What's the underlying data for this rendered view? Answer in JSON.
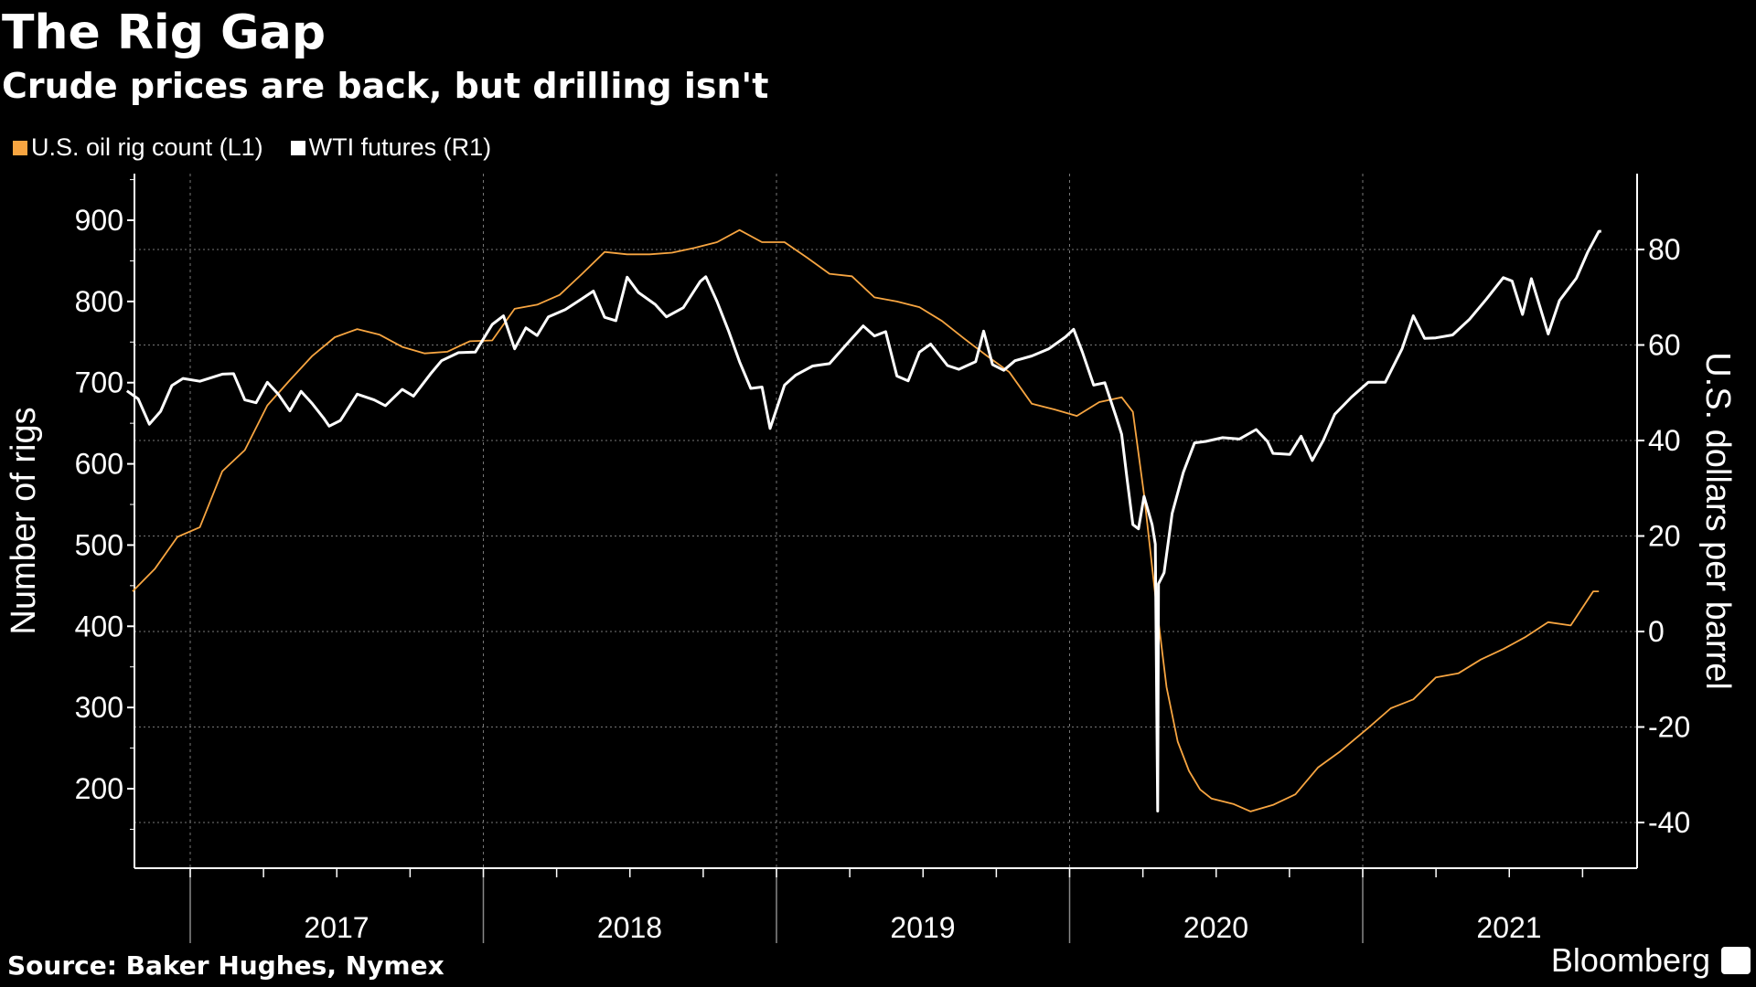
{
  "title": "The Rig Gap",
  "subtitle": "Crude prices are back, but drilling isn't",
  "source": "Source: Baker Hughes, Nymex",
  "brand": "Bloomberg",
  "chart_data": {
    "type": "line",
    "title": "The Rig Gap",
    "subtitle": "Crude prices are back, but drilling isn't",
    "legend_placement": "top-left",
    "grid": true,
    "x_ticks": [
      "2017",
      "2018",
      "2019",
      "2020",
      "2021"
    ],
    "xlim": [
      "2016-10-15",
      "2021-12-01"
    ],
    "y_left": {
      "label": "Number of rigs",
      "lim": [
        100,
        950
      ],
      "ticks": [
        200,
        300,
        400,
        500,
        600,
        700,
        800,
        900
      ]
    },
    "y_right": {
      "label": "U.S. dollars per barrel",
      "lim": [
        -50,
        95
      ],
      "ticks": [
        -40,
        -20,
        0,
        20,
        40,
        60,
        80
      ]
    },
    "series": [
      {
        "name": "U.S. oil rig count (L1)",
        "axis": "left",
        "color": "#f7a541",
        "points": [
          [
            "2016-10-21",
            443
          ],
          [
            "2016-11-18",
            471
          ],
          [
            "2016-12-16",
            510
          ],
          [
            "2017-01-13",
            522
          ],
          [
            "2017-02-10",
            591
          ],
          [
            "2017-03-10",
            617
          ],
          [
            "2017-04-07",
            672
          ],
          [
            "2017-05-05",
            703
          ],
          [
            "2017-06-02",
            733
          ],
          [
            "2017-06-30",
            756
          ],
          [
            "2017-07-28",
            766
          ],
          [
            "2017-08-25",
            759
          ],
          [
            "2017-09-22",
            744
          ],
          [
            "2017-10-20",
            736
          ],
          [
            "2017-11-17",
            738
          ],
          [
            "2017-12-15",
            751
          ],
          [
            "2018-01-12",
            752
          ],
          [
            "2018-02-09",
            791
          ],
          [
            "2018-03-09",
            796
          ],
          [
            "2018-04-06",
            808
          ],
          [
            "2018-05-04",
            834
          ],
          [
            "2018-06-01",
            861
          ],
          [
            "2018-06-29",
            858
          ],
          [
            "2018-07-27",
            858
          ],
          [
            "2018-08-24",
            860
          ],
          [
            "2018-09-21",
            866
          ],
          [
            "2018-10-19",
            873
          ],
          [
            "2018-11-16",
            888
          ],
          [
            "2018-12-14",
            873
          ],
          [
            "2019-01-11",
            873
          ],
          [
            "2019-02-08",
            854
          ],
          [
            "2019-03-08",
            834
          ],
          [
            "2019-04-05",
            831
          ],
          [
            "2019-05-03",
            805
          ],
          [
            "2019-05-31",
            800
          ],
          [
            "2019-06-28",
            793
          ],
          [
            "2019-07-26",
            776
          ],
          [
            "2019-08-23",
            754
          ],
          [
            "2019-09-20",
            733
          ],
          [
            "2019-10-18",
            713
          ],
          [
            "2019-11-15",
            674
          ],
          [
            "2019-12-13",
            667
          ],
          [
            "2020-01-10",
            659
          ],
          [
            "2020-02-07",
            676
          ],
          [
            "2020-03-06",
            682
          ],
          [
            "2020-03-20",
            664
          ],
          [
            "2020-04-03",
            562
          ],
          [
            "2020-04-17",
            438
          ],
          [
            "2020-05-01",
            325
          ],
          [
            "2020-05-15",
            258
          ],
          [
            "2020-05-29",
            222
          ],
          [
            "2020-06-12",
            199
          ],
          [
            "2020-06-26",
            188
          ],
          [
            "2020-07-24",
            181
          ],
          [
            "2020-08-14",
            172
          ],
          [
            "2020-09-11",
            180
          ],
          [
            "2020-10-09",
            193
          ],
          [
            "2020-11-06",
            226
          ],
          [
            "2020-12-04",
            246
          ],
          [
            "2021-01-08",
            275
          ],
          [
            "2021-02-05",
            299
          ],
          [
            "2021-03-05",
            310
          ],
          [
            "2021-04-02",
            337
          ],
          [
            "2021-04-30",
            342
          ],
          [
            "2021-05-28",
            359
          ],
          [
            "2021-06-25",
            372
          ],
          [
            "2021-07-23",
            387
          ],
          [
            "2021-08-20",
            405
          ],
          [
            "2021-09-17",
            401
          ],
          [
            "2021-10-15",
            443
          ],
          [
            "2021-10-22",
            443
          ]
        ]
      },
      {
        "name": "WTI futures (R1)",
        "axis": "right",
        "color": "#ffffff",
        "points": [
          [
            "2016-10-14",
            50.4
          ],
          [
            "2016-10-28",
            48.7
          ],
          [
            "2016-11-11",
            43.4
          ],
          [
            "2016-11-25",
            46.1
          ],
          [
            "2016-12-09",
            51.5
          ],
          [
            "2016-12-23",
            53.0
          ],
          [
            "2017-01-13",
            52.4
          ],
          [
            "2017-02-10",
            53.9
          ],
          [
            "2017-02-24",
            54.0
          ],
          [
            "2017-03-10",
            48.5
          ],
          [
            "2017-03-24",
            47.9
          ],
          [
            "2017-04-07",
            52.2
          ],
          [
            "2017-04-21",
            49.6
          ],
          [
            "2017-05-05",
            46.2
          ],
          [
            "2017-05-19",
            50.3
          ],
          [
            "2017-06-02",
            47.7
          ],
          [
            "2017-06-16",
            44.7
          ],
          [
            "2017-06-23",
            43.0
          ],
          [
            "2017-07-07",
            44.2
          ],
          [
            "2017-07-28",
            49.7
          ],
          [
            "2017-08-18",
            48.5
          ],
          [
            "2017-09-01",
            47.3
          ],
          [
            "2017-09-22",
            50.7
          ],
          [
            "2017-10-06",
            49.3
          ],
          [
            "2017-10-27",
            53.9
          ],
          [
            "2017-11-10",
            56.7
          ],
          [
            "2017-12-01",
            58.4
          ],
          [
            "2017-12-22",
            58.5
          ],
          [
            "2018-01-12",
            64.3
          ],
          [
            "2018-01-26",
            66.1
          ],
          [
            "2018-02-09",
            59.2
          ],
          [
            "2018-02-23",
            63.6
          ],
          [
            "2018-03-09",
            62.0
          ],
          [
            "2018-03-23",
            65.9
          ],
          [
            "2018-04-13",
            67.4
          ],
          [
            "2018-05-04",
            69.7
          ],
          [
            "2018-05-18",
            71.3
          ],
          [
            "2018-06-01",
            65.8
          ],
          [
            "2018-06-15",
            65.1
          ],
          [
            "2018-06-29",
            74.2
          ],
          [
            "2018-07-13",
            71.0
          ],
          [
            "2018-08-03",
            68.5
          ],
          [
            "2018-08-17",
            65.9
          ],
          [
            "2018-09-07",
            67.8
          ],
          [
            "2018-09-28",
            73.3
          ],
          [
            "2018-10-05",
            74.3
          ],
          [
            "2018-10-19",
            69.1
          ],
          [
            "2018-11-02",
            63.1
          ],
          [
            "2018-11-16",
            56.5
          ],
          [
            "2018-11-30",
            50.9
          ],
          [
            "2018-12-14",
            51.2
          ],
          [
            "2018-12-24",
            42.5
          ],
          [
            "2019-01-11",
            51.6
          ],
          [
            "2019-01-25",
            53.7
          ],
          [
            "2019-02-15",
            55.6
          ],
          [
            "2019-03-08",
            56.1
          ],
          [
            "2019-03-29",
            60.1
          ],
          [
            "2019-04-19",
            64.0
          ],
          [
            "2019-05-03",
            61.9
          ],
          [
            "2019-05-17",
            62.8
          ],
          [
            "2019-05-31",
            53.5
          ],
          [
            "2019-06-14",
            52.5
          ],
          [
            "2019-06-28",
            58.5
          ],
          [
            "2019-07-12",
            60.2
          ],
          [
            "2019-08-02",
            55.7
          ],
          [
            "2019-08-16",
            54.9
          ],
          [
            "2019-09-06",
            56.5
          ],
          [
            "2019-09-16",
            62.9
          ],
          [
            "2019-09-27",
            55.9
          ],
          [
            "2019-10-11",
            54.7
          ],
          [
            "2019-10-25",
            56.7
          ],
          [
            "2019-11-15",
            57.7
          ],
          [
            "2019-12-06",
            59.2
          ],
          [
            "2019-12-27",
            61.7
          ],
          [
            "2020-01-06",
            63.3
          ],
          [
            "2020-01-17",
            58.5
          ],
          [
            "2020-01-31",
            51.6
          ],
          [
            "2020-02-14",
            52.1
          ],
          [
            "2020-02-28",
            45.0
          ],
          [
            "2020-03-06",
            41.3
          ],
          [
            "2020-03-13",
            31.7
          ],
          [
            "2020-03-20",
            22.4
          ],
          [
            "2020-03-27",
            21.5
          ],
          [
            "2020-04-03",
            28.3
          ],
          [
            "2020-04-13",
            22.4
          ],
          [
            "2020-04-17",
            18.3
          ],
          [
            "2020-04-20",
            -37.6
          ],
          [
            "2020-04-21",
            10.0
          ],
          [
            "2020-04-28",
            12.3
          ],
          [
            "2020-05-08",
            24.7
          ],
          [
            "2020-05-22",
            33.3
          ],
          [
            "2020-06-05",
            39.5
          ],
          [
            "2020-06-19",
            39.8
          ],
          [
            "2020-07-10",
            40.6
          ],
          [
            "2020-07-31",
            40.3
          ],
          [
            "2020-08-21",
            42.3
          ],
          [
            "2020-09-04",
            39.8
          ],
          [
            "2020-09-11",
            37.3
          ],
          [
            "2020-10-02",
            37.1
          ],
          [
            "2020-10-16",
            40.9
          ],
          [
            "2020-10-30",
            35.8
          ],
          [
            "2020-11-13",
            40.1
          ],
          [
            "2020-11-27",
            45.5
          ],
          [
            "2020-12-18",
            49.1
          ],
          [
            "2021-01-08",
            52.2
          ],
          [
            "2021-01-29",
            52.2
          ],
          [
            "2021-02-19",
            59.2
          ],
          [
            "2021-03-05",
            66.1
          ],
          [
            "2021-03-19",
            61.4
          ],
          [
            "2021-04-02",
            61.5
          ],
          [
            "2021-04-23",
            62.1
          ],
          [
            "2021-05-14",
            65.4
          ],
          [
            "2021-06-04",
            69.6
          ],
          [
            "2021-06-25",
            74.1
          ],
          [
            "2021-07-06",
            73.4
          ],
          [
            "2021-07-19",
            66.4
          ],
          [
            "2021-07-30",
            73.9
          ],
          [
            "2021-08-20",
            62.3
          ],
          [
            "2021-09-03",
            69.3
          ],
          [
            "2021-09-24",
            74.0
          ],
          [
            "2021-10-08",
            79.4
          ],
          [
            "2021-10-22",
            83.8
          ],
          [
            "2021-10-25",
            83.8
          ]
        ]
      }
    ]
  }
}
